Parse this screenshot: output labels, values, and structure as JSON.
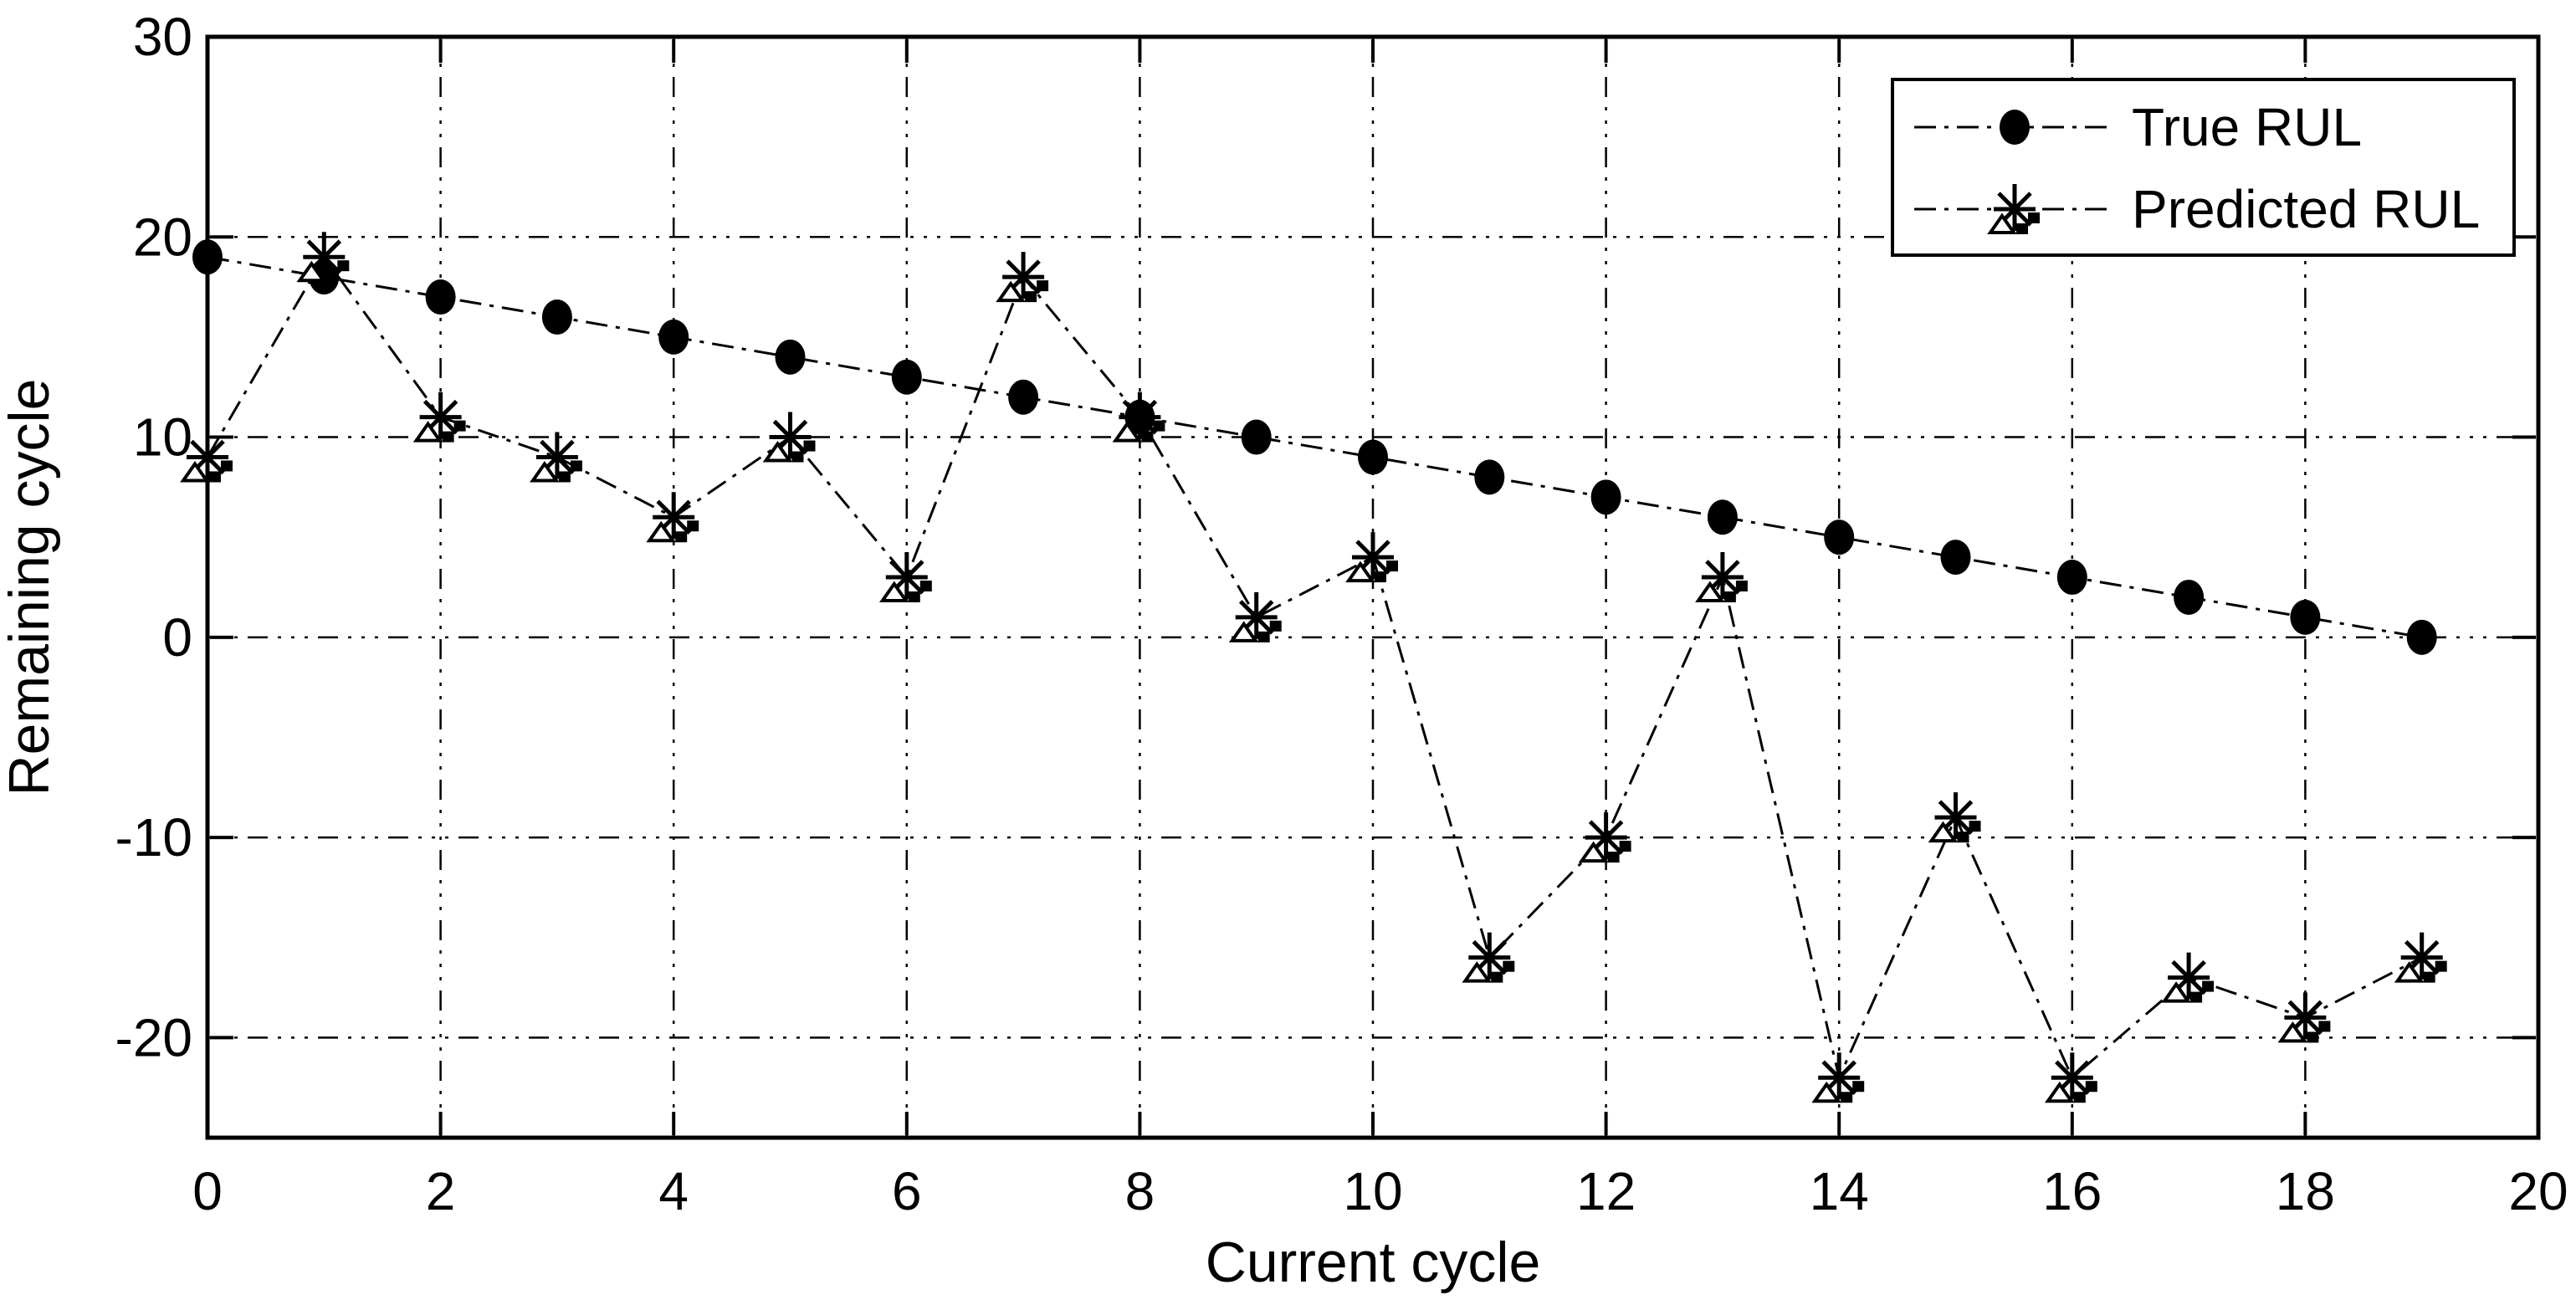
{
  "figure": {
    "background_color": "#ffffff",
    "foreground_color": "#000000"
  },
  "chart_data": {
    "type": "line",
    "title": "",
    "xlabel": "Current cycle",
    "ylabel": "Remaining cycle",
    "xlim": [
      0,
      20
    ],
    "ylim": [
      -25,
      30
    ],
    "x_ticks": [
      0,
      2,
      4,
      6,
      8,
      10,
      12,
      14,
      16,
      18,
      20
    ],
    "y_ticks": [
      30,
      20,
      10,
      0,
      -10,
      -20
    ],
    "grid": true,
    "grid_style": "dash-dot",
    "box": true,
    "tick_direction": "in",
    "legend_position": "top-right",
    "x": [
      0,
      1,
      2,
      3,
      4,
      5,
      6,
      7,
      8,
      9,
      10,
      11,
      12,
      13,
      14,
      15,
      16,
      17,
      18,
      19
    ],
    "series": [
      {
        "name": "True RUL",
        "marker": "filled-circle",
        "linestyle": "dash-dot",
        "color": "#000000",
        "values": [
          19,
          18,
          17,
          16,
          15,
          14,
          13,
          12,
          11,
          10,
          9,
          8,
          7,
          6,
          5,
          4,
          3,
          2,
          1,
          0
        ]
      },
      {
        "name": "Predicted RUL",
        "marker": "asterisk",
        "linestyle": "dash-dot",
        "color": "#000000",
        "values": [
          9,
          19,
          11,
          9,
          6,
          10,
          3,
          18,
          11,
          1,
          4,
          -16,
          -10,
          3,
          -22,
          -9,
          -22,
          -17,
          -19,
          -16
        ]
      }
    ]
  }
}
